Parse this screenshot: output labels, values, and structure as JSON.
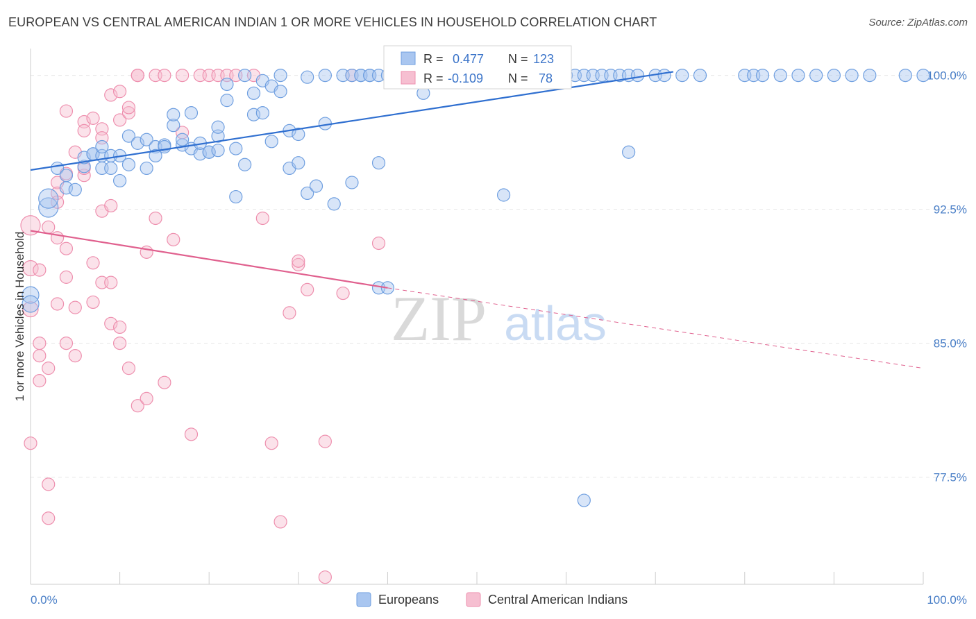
{
  "header": {
    "title": "EUROPEAN VS CENTRAL AMERICAN INDIAN 1 OR MORE VEHICLES IN HOUSEHOLD CORRELATION CHART",
    "source": "Source: ZipAtlas.com"
  },
  "watermark": {
    "zip": "ZIP",
    "atlas": "atlas"
  },
  "colors": {
    "blue": "#6f9fe0",
    "blue_fill": "#a9c6f0",
    "blue_line": "#2f6fd0",
    "pink": "#ee8fae",
    "pink_fill": "#f6bfd1",
    "pink_line": "#e0608e",
    "tick_text": "#4a7fc7"
  },
  "chart_data": {
    "type": "scatter",
    "title": "EUROPEAN VS CENTRAL AMERICAN INDIAN 1 OR MORE VEHICLES IN HOUSEHOLD CORRELATION CHART",
    "ylabel": "1 or more Vehicles in Household",
    "xlim": [
      0,
      100
    ],
    "ylim": [
      71.5,
      101.5
    ],
    "x_tick_labels": [
      "0.0%",
      "100.0%"
    ],
    "y_ticks": [
      {
        "value": 100.0,
        "label": "100.0%"
      },
      {
        "value": 92.5,
        "label": "92.5%"
      },
      {
        "value": 85.0,
        "label": "85.0%"
      },
      {
        "value": 77.5,
        "label": "77.5%"
      }
    ],
    "grid": true,
    "legend": [
      {
        "name": "Europeans",
        "color": "#a9c6f0"
      },
      {
        "name": "Central American Indians",
        "color": "#f6bfd1"
      }
    ],
    "stats": [
      {
        "r_label": "R =",
        "r": "0.477",
        "n_label": "N =",
        "n": "123"
      },
      {
        "r_label": "R =",
        "r": "-0.109",
        "n_label": "N =",
        "n": "78"
      }
    ],
    "series": [
      {
        "name": "Europeans",
        "trend": {
          "x": [
            0,
            72
          ],
          "y": [
            94.7,
            100.2
          ]
        },
        "points": [
          [
            2,
            92.6
          ],
          [
            2,
            93.1
          ],
          [
            0,
            87.7
          ],
          [
            0,
            87.2
          ],
          [
            3,
            94.8
          ],
          [
            4,
            94.4
          ],
          [
            4,
            93.7
          ],
          [
            5,
            93.6
          ],
          [
            6,
            94.9
          ],
          [
            6,
            95.4
          ],
          [
            7,
            95.6
          ],
          [
            7,
            95.6
          ],
          [
            8,
            95.5
          ],
          [
            8,
            96.0
          ],
          [
            8,
            94.8
          ],
          [
            9,
            95.5
          ],
          [
            9,
            94.8
          ],
          [
            10,
            94.1
          ],
          [
            10,
            95.5
          ],
          [
            11,
            95.0
          ],
          [
            11,
            96.6
          ],
          [
            12,
            96.2
          ],
          [
            13,
            96.4
          ],
          [
            13,
            94.8
          ],
          [
            14,
            96.0
          ],
          [
            14,
            95.5
          ],
          [
            15,
            96.1
          ],
          [
            15,
            96.0
          ],
          [
            16,
            97.2
          ],
          [
            16,
            97.8
          ],
          [
            17,
            96.1
          ],
          [
            17,
            96.4
          ],
          [
            18,
            95.9
          ],
          [
            18,
            97.9
          ],
          [
            19,
            95.6
          ],
          [
            19,
            96.2
          ],
          [
            20,
            95.7
          ],
          [
            20,
            95.7
          ],
          [
            21,
            95.8
          ],
          [
            21,
            96.6
          ],
          [
            21,
            97.1
          ],
          [
            22,
            98.6
          ],
          [
            22,
            99.5
          ],
          [
            23,
            95.9
          ],
          [
            23,
            93.2
          ],
          [
            24,
            95.0
          ],
          [
            24,
            100.0
          ],
          [
            25,
            99.0
          ],
          [
            25,
            97.8
          ],
          [
            26,
            97.9
          ],
          [
            26,
            99.7
          ],
          [
            27,
            96.3
          ],
          [
            27,
            99.4
          ],
          [
            28,
            99.1
          ],
          [
            28,
            100.0
          ],
          [
            29,
            94.8
          ],
          [
            29,
            96.9
          ],
          [
            30,
            96.7
          ],
          [
            30,
            95.1
          ],
          [
            31,
            99.9
          ],
          [
            31,
            93.4
          ],
          [
            32,
            93.8
          ],
          [
            33,
            100.0
          ],
          [
            33,
            97.3
          ],
          [
            34,
            92.8
          ],
          [
            35,
            100.0
          ],
          [
            36,
            100.0
          ],
          [
            36,
            94.0
          ],
          [
            37,
            100.0
          ],
          [
            37,
            100.0
          ],
          [
            38,
            100.0
          ],
          [
            38,
            100.0
          ],
          [
            39,
            95.1
          ],
          [
            39,
            100.0
          ],
          [
            40,
            100.0
          ],
          [
            41,
            100.0
          ],
          [
            42,
            100.0
          ],
          [
            43,
            100.0
          ],
          [
            44,
            99.0
          ],
          [
            45,
            100.0
          ],
          [
            46,
            100.0
          ],
          [
            47,
            100.0
          ],
          [
            48,
            100.0
          ],
          [
            49,
            100.0
          ],
          [
            50,
            100.0
          ],
          [
            51,
            100.0
          ],
          [
            52,
            100.0
          ],
          [
            53,
            100.0
          ],
          [
            54,
            100.0
          ],
          [
            55,
            100.0
          ],
          [
            56,
            100.0
          ],
          [
            57,
            100.0
          ],
          [
            58,
            100.0
          ],
          [
            59,
            100.0
          ],
          [
            60,
            100.0
          ],
          [
            61,
            100.0
          ],
          [
            62,
            100.0
          ],
          [
            63,
            100.0
          ],
          [
            64,
            100.0
          ],
          [
            65,
            100.0
          ],
          [
            66,
            100.0
          ],
          [
            67,
            100.0
          ],
          [
            68,
            100.0
          ],
          [
            70,
            100.0
          ],
          [
            71,
            100.0
          ],
          [
            73,
            100.0
          ],
          [
            75,
            100.0
          ],
          [
            80,
            100.0
          ],
          [
            81,
            100.0
          ],
          [
            82,
            100.0
          ],
          [
            84,
            100.0
          ],
          [
            86,
            100.0
          ],
          [
            88,
            100.0
          ],
          [
            90,
            100.0
          ],
          [
            92,
            100.0
          ],
          [
            94,
            100.0
          ],
          [
            98,
            100.0
          ],
          [
            100,
            100.0
          ],
          [
            67,
            95.7
          ],
          [
            53,
            93.3
          ],
          [
            62,
            76.2
          ],
          [
            39,
            88.1
          ],
          [
            40,
            88.1
          ]
        ]
      },
      {
        "name": "Central American Indians",
        "trend": {
          "x": [
            0,
            40
          ],
          "y": [
            91.3,
            88.1
          ]
        },
        "trend_dashed": {
          "x": [
            40,
            100
          ],
          "y": [
            88.1,
            83.6
          ]
        },
        "points": [
          [
            0,
            91.6
          ],
          [
            0,
            89.2
          ],
          [
            0,
            86.9
          ],
          [
            0,
            79.4
          ],
          [
            1,
            89.1
          ],
          [
            1,
            85.0
          ],
          [
            1,
            82.9
          ],
          [
            1,
            84.3
          ],
          [
            2,
            91.5
          ],
          [
            2,
            83.6
          ],
          [
            2,
            77.1
          ],
          [
            2,
            75.2
          ],
          [
            3,
            94.0
          ],
          [
            3,
            93.4
          ],
          [
            3,
            90.9
          ],
          [
            3,
            87.2
          ],
          [
            3,
            92.9
          ],
          [
            4,
            90.3
          ],
          [
            4,
            88.7
          ],
          [
            4,
            85.0
          ],
          [
            4,
            94.5
          ],
          [
            4,
            98.0
          ],
          [
            5,
            95.7
          ],
          [
            5,
            84.3
          ],
          [
            5,
            87.0
          ],
          [
            6,
            97.4
          ],
          [
            6,
            96.9
          ],
          [
            6,
            94.4
          ],
          [
            6,
            94.8
          ],
          [
            7,
            97.6
          ],
          [
            7,
            89.5
          ],
          [
            7,
            87.3
          ],
          [
            8,
            97.0
          ],
          [
            8,
            96.5
          ],
          [
            8,
            92.4
          ],
          [
            8,
            88.4
          ],
          [
            9,
            98.9
          ],
          [
            9,
            92.7
          ],
          [
            9,
            86.1
          ],
          [
            9,
            88.4
          ],
          [
            10,
            99.1
          ],
          [
            10,
            97.5
          ],
          [
            10,
            85.9
          ],
          [
            10,
            85.0
          ],
          [
            11,
            97.9
          ],
          [
            11,
            98.2
          ],
          [
            11,
            83.6
          ],
          [
            12,
            100.0
          ],
          [
            12,
            100.0
          ],
          [
            12,
            81.5
          ],
          [
            13,
            90.1
          ],
          [
            13,
            81.9
          ],
          [
            14,
            100.0
          ],
          [
            14,
            92.0
          ],
          [
            15,
            100.0
          ],
          [
            15,
            82.8
          ],
          [
            16,
            90.8
          ],
          [
            17,
            100.0
          ],
          [
            17,
            96.8
          ],
          [
            18,
            79.9
          ],
          [
            19,
            100.0
          ],
          [
            20,
            100.0
          ],
          [
            21,
            100.0
          ],
          [
            22,
            100.0
          ],
          [
            23,
            100.0
          ],
          [
            25,
            100.0
          ],
          [
            26,
            92.0
          ],
          [
            27,
            79.4
          ],
          [
            28,
            75.0
          ],
          [
            29,
            86.7
          ],
          [
            30,
            89.4
          ],
          [
            30,
            89.6
          ],
          [
            31,
            88.0
          ],
          [
            33,
            71.9
          ],
          [
            33,
            79.5
          ],
          [
            35,
            87.8
          ],
          [
            39,
            90.6
          ],
          [
            36,
            100.0
          ]
        ]
      }
    ]
  },
  "legend": {
    "europeans": "Europeans",
    "central_american_indians": "Central American Indians"
  }
}
